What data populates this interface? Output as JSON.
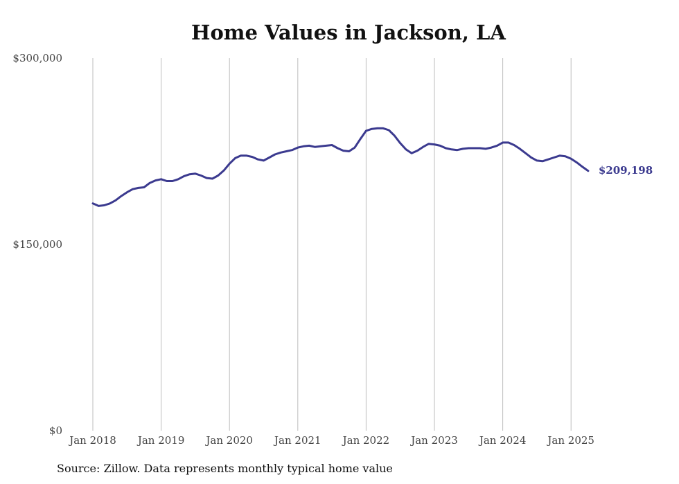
{
  "title": "Home Values in Jackson, LA",
  "source": "Source: Zillow. Data represents monthly typical home value",
  "colors": {
    "line": "#3b3a8f",
    "grid": "#bdbdbd",
    "text": "#444444"
  },
  "chart_data": {
    "type": "line",
    "title": "Home Values in Jackson, LA",
    "xlabel": "",
    "ylabel": "",
    "ylim": [
      0,
      300000
    ],
    "yticks": [
      {
        "value": 0,
        "label": "$0"
      },
      {
        "value": 150000,
        "label": "$150,000"
      },
      {
        "value": 300000,
        "label": "$300,000"
      }
    ],
    "xticks": [
      "Jan 2018",
      "Jan 2019",
      "Jan 2020",
      "Jan 2021",
      "Jan 2022",
      "Jan 2023",
      "Jan 2024",
      "Jan 2025"
    ],
    "grid": "vertical",
    "series": [
      {
        "start": "Jan 2018",
        "frequency": "monthly",
        "end_label": "$209,198",
        "values": [
          183000,
          181000,
          181500,
          183000,
          185500,
          189000,
          192000,
          194500,
          195500,
          196000,
          199500,
          201500,
          202500,
          201000,
          201000,
          202500,
          205000,
          206500,
          207000,
          205500,
          203500,
          203000,
          205500,
          209500,
          215000,
          219500,
          221500,
          221500,
          220500,
          218500,
          217500,
          220000,
          222500,
          224000,
          225000,
          226000,
          228000,
          229000,
          229500,
          228500,
          229000,
          229500,
          230000,
          227500,
          225500,
          225000,
          228000,
          235000,
          241500,
          243000,
          243500,
          243500,
          242000,
          237500,
          231500,
          226500,
          223500,
          225500,
          228500,
          231000,
          230500,
          229500,
          227500,
          226500,
          226000,
          227000,
          227500,
          227500,
          227500,
          227000,
          228000,
          229500,
          232000,
          232000,
          230000,
          227000,
          223500,
          220000,
          217500,
          217000,
          218500,
          220000,
          221500,
          221000,
          219000,
          216000,
          212500,
          209198
        ]
      }
    ]
  }
}
